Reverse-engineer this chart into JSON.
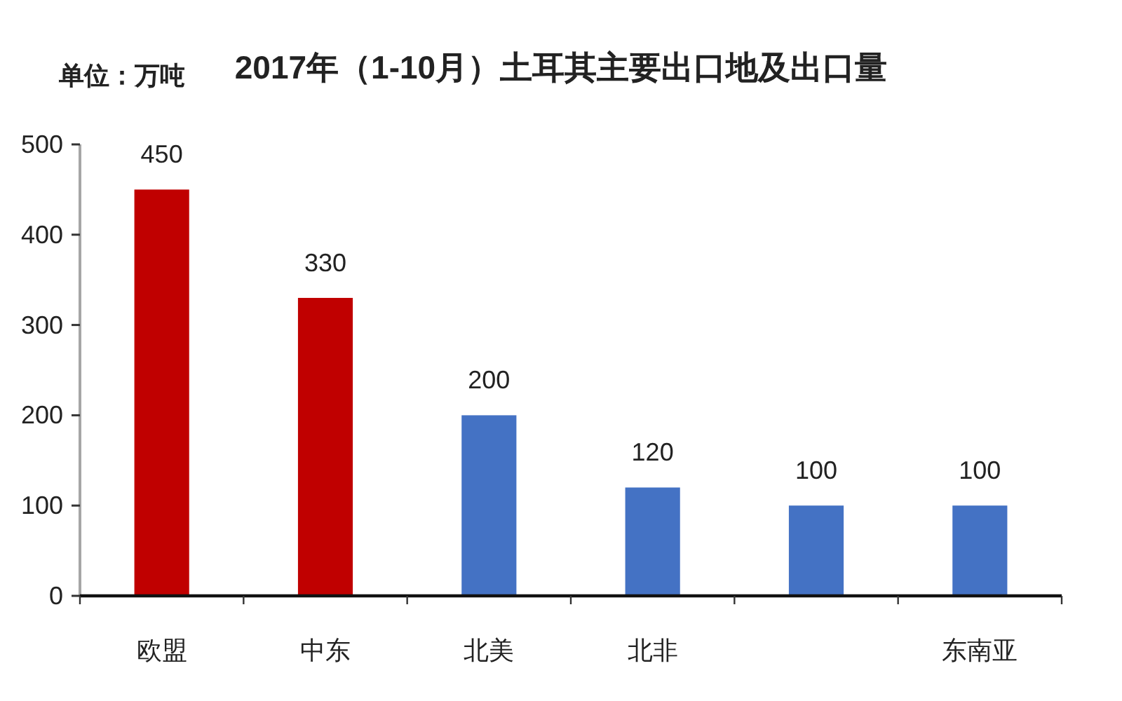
{
  "chart_data": {
    "type": "bar",
    "title": "2017年（1-10月）土耳其主要出口地及出口量",
    "ylabel": "单位：万吨",
    "categories": [
      "欧盟",
      "中东",
      "北美",
      "北非",
      null,
      "东南亚"
    ],
    "values": [
      450,
      330,
      200,
      120,
      100,
      100
    ],
    "colors": [
      "#c00000",
      "#c00000",
      "#4472c4",
      "#4472c4",
      "#4472c4",
      "#4472c4"
    ],
    "ylim": [
      0,
      500
    ],
    "yticks": [
      0,
      100,
      200,
      300,
      400,
      500
    ],
    "data_labels": true
  }
}
